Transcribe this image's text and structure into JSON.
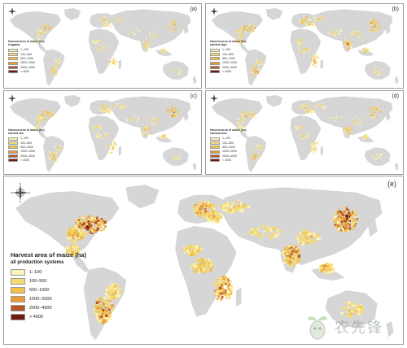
{
  "figure": {
    "panels": [
      {
        "id": "a",
        "label": "(a)",
        "legend_title": "Harvest area of maize (ha)",
        "legend_subtitle": "irrigated"
      },
      {
        "id": "b",
        "label": "(b)",
        "legend_title": "Harvest area of maize (ha)",
        "legend_subtitle": "rainfed high"
      },
      {
        "id": "c",
        "label": "(c)",
        "legend_title": "Harvest area of maize (ha)",
        "legend_subtitle": "rainfed low"
      },
      {
        "id": "d",
        "label": "(d)",
        "legend_title": "Harvest area of maize (ha)",
        "legend_subtitle": "subsistence"
      },
      {
        "id": "e",
        "label": "(e)",
        "legend_title": "Harvest area of maize (ha)",
        "legend_subtitle": "all production systems"
      }
    ],
    "legend_classes": [
      {
        "label": "1–100",
        "color": "#fbf3b8"
      },
      {
        "label": "100–500",
        "color": "#f6dc70"
      },
      {
        "label": "500–1000",
        "color": "#f2c24a"
      },
      {
        "label": "1000–2000",
        "color": "#e79a37"
      },
      {
        "label": "2000–4000",
        "color": "#b8562a"
      },
      {
        "label": "> 4000",
        "color": "#6e1c12"
      }
    ],
    "land_color": "#d6d6d6",
    "compass_letters": {
      "n": "N",
      "s": "S",
      "e": "E",
      "w": "W"
    },
    "watermark": {
      "text": "农先锋",
      "icon": "sprout-logo-icon"
    }
  }
}
